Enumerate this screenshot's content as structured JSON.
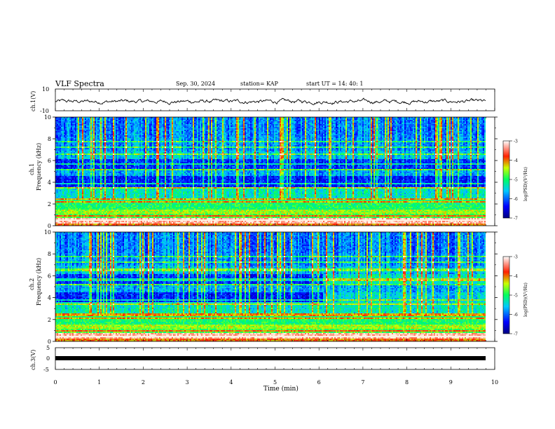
{
  "header": {
    "title": "VLF Spectra",
    "date": "Sep. 30, 2024",
    "station": "station= KAP",
    "start": "start  UT  =   14: 40: 1"
  },
  "colors": {
    "spectrogram_low": "#0000a0",
    "spectrogram_mid": "#00d060",
    "spectrogram_high": "#ff2000",
    "spectrogram_max": "#fff0e0",
    "trace": "#000000"
  },
  "chart_data": [
    {
      "type": "line",
      "panel": "ch1-waveform",
      "ylabel": "ch.1(V)",
      "ylim": [
        -10,
        10
      ],
      "yticks": [
        "10",
        "-10"
      ],
      "xlim": [
        0,
        10
      ],
      "description_series": "noisy waveform oscillating roughly between -5 and 3 V around -1.5 V"
    },
    {
      "type": "heatmap",
      "panel": "ch1-spectrogram",
      "ylabel": "ch.1",
      "ylabel2": "Frequency (kHz)",
      "ylim": [
        0,
        10
      ],
      "yticks": [
        "0",
        "2",
        "4",
        "6",
        "8",
        "10"
      ],
      "xlim": [
        0,
        10
      ],
      "colorbar": {
        "label": "log(PSD)(V²/Hz)",
        "range": [
          -7,
          -3
        ],
        "ticks": [
          "-3",
          "-4",
          "-5",
          "-6",
          "-7"
        ]
      }
    },
    {
      "type": "heatmap",
      "panel": "ch2-spectrogram",
      "ylabel": "ch.2",
      "ylabel2": "Frequency (kHz)",
      "ylim": [
        0,
        10
      ],
      "yticks": [
        "0",
        "2",
        "4",
        "6",
        "8",
        "10"
      ],
      "xlim": [
        0,
        10
      ],
      "colorbar": {
        "label": "log(PSD)(V²/Hz)",
        "range": [
          -7,
          -3
        ],
        "ticks": [
          "-3",
          "-4",
          "-5",
          "-6",
          "-7"
        ]
      }
    },
    {
      "type": "line",
      "panel": "ch3-waveform",
      "ylabel": "ch.3(V)",
      "ylim": [
        -5,
        5
      ],
      "yticks": [
        "5",
        "0",
        "-5"
      ],
      "xlim": [
        0,
        10
      ],
      "xlabel": "Time (min)",
      "xticks": [
        "0",
        "1",
        "2",
        "3",
        "4",
        "5",
        "6",
        "7",
        "8",
        "9",
        "10"
      ],
      "level": -0.3
    }
  ]
}
